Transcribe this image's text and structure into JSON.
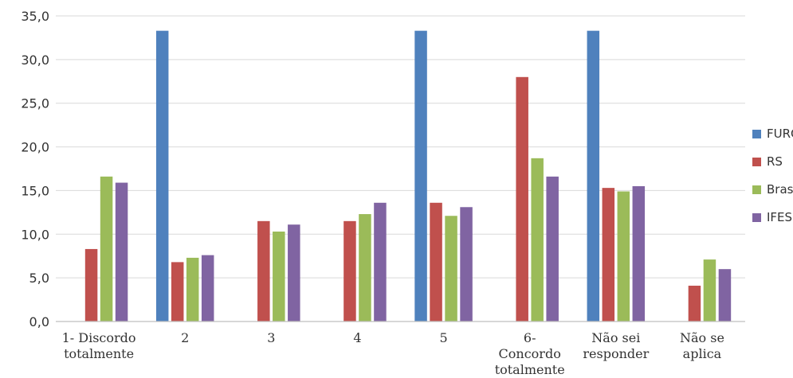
{
  "chart_data": {
    "type": "bar",
    "categories": [
      [
        "1- Discordo",
        "totalmente"
      ],
      [
        "2"
      ],
      [
        "3"
      ],
      [
        "4"
      ],
      [
        "5"
      ],
      [
        "6-",
        "Concordo",
        "totalmente"
      ],
      [
        "Não sei",
        "responder"
      ],
      [
        "Não se",
        "aplica"
      ]
    ],
    "series": [
      {
        "name": "FURG",
        "color": "#4F81BD",
        "values": [
          0,
          33.3,
          0,
          0,
          33.3,
          0,
          33.3,
          0
        ]
      },
      {
        "name": "RS",
        "color": "#C0504D",
        "values": [
          8.3,
          6.8,
          11.5,
          11.5,
          13.6,
          28.0,
          15.3,
          4.1
        ]
      },
      {
        "name": "Brasil",
        "color": "#9BBB59",
        "values": [
          16.6,
          7.3,
          10.3,
          12.3,
          12.1,
          18.7,
          14.9,
          7.1
        ]
      },
      {
        "name": "IFES",
        "color": "#8064A2",
        "values": [
          15.9,
          7.6,
          11.1,
          13.6,
          13.1,
          16.6,
          15.5,
          6.0
        ]
      }
    ],
    "y_ticks": [
      "0,0",
      "5,0",
      "10,0",
      "15,0",
      "20,0",
      "25,0",
      "30,0",
      "35,0"
    ],
    "ylim": [
      0,
      35
    ],
    "grid": true,
    "legend_position": "right"
  }
}
